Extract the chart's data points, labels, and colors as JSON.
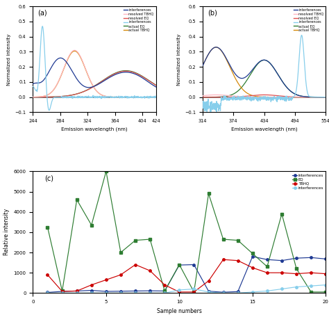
{
  "panel_a": {
    "title": "(a)",
    "xlabel": "Emission wavelength (nm)",
    "ylabel": "Normalized intensity",
    "xlim": [
      244,
      424
    ],
    "ylim": [
      -0.1,
      0.6
    ],
    "xticks": [
      244,
      284,
      324,
      364,
      404,
      424
    ],
    "yticks": [
      -0.1,
      0.0,
      0.1,
      0.2,
      0.3,
      0.4,
      0.5,
      0.6
    ],
    "legend": [
      "interferences",
      "resolved TBHQ",
      "resolved EQ",
      "interferences",
      "actual EQ",
      "actual TBHQ"
    ],
    "colors": [
      "#1F3A93",
      "#FFB6C1",
      "#E05050",
      "#87CEEB",
      "#2E7D32",
      "#D4890A"
    ]
  },
  "panel_b": {
    "title": "(b)",
    "xlabel": "Emission wavelength (nm)",
    "ylabel": "Normalized intensity",
    "xlim": [
      314,
      554
    ],
    "ylim": [
      -0.1,
      0.6
    ],
    "xticks": [
      314,
      374,
      434,
      494,
      554
    ],
    "yticks": [
      -0.1,
      0.0,
      0.1,
      0.2,
      0.3,
      0.4,
      0.5,
      0.6
    ],
    "legend": [
      "interferences",
      "resolved TBHQ",
      "resolved EQ",
      "interferences",
      "actual EQ",
      "actual TBHQ"
    ],
    "colors": [
      "#1F3A93",
      "#FFB6C1",
      "#E05050",
      "#87CEEB",
      "#2E7D32",
      "#D4890A"
    ]
  },
  "panel_c": {
    "title": "(c)",
    "xlabel": "Sample numbers",
    "ylabel": "Relative intensity",
    "xlim": [
      0,
      20
    ],
    "ylim": [
      0,
      6000
    ],
    "xticks": [
      0,
      5,
      10,
      15,
      20
    ],
    "yticks": [
      0,
      1000,
      2000,
      3000,
      4000,
      5000,
      6000
    ],
    "legend": [
      "interferences",
      "EQ",
      "TBHQ",
      "interferences"
    ],
    "colors": [
      "#1F3A93",
      "#2E7D32",
      "#CC0000",
      "#87CEEB"
    ],
    "x": [
      1,
      2,
      3,
      4,
      5,
      6,
      7,
      8,
      9,
      10,
      11,
      12,
      13,
      14,
      15,
      16,
      17,
      18,
      19,
      20
    ],
    "interferences_blue": [
      30,
      80,
      100,
      130,
      80,
      90,
      100,
      110,
      100,
      1380,
      1400,
      90,
      40,
      70,
      1800,
      1650,
      1600,
      1720,
      1750,
      1680
    ],
    "EQ": [
      3250,
      100,
      4600,
      3350,
      6000,
      2000,
      2600,
      2650,
      100,
      1400,
      50,
      4900,
      2650,
      2600,
      1950,
      1300,
      3900,
      1200,
      50,
      50
    ],
    "TBHQ": [
      900,
      80,
      100,
      400,
      650,
      900,
      1400,
      1100,
      400,
      50,
      50,
      600,
      1650,
      1600,
      1250,
      1000,
      1000,
      950,
      1000,
      950
    ],
    "interferences_cyan": [
      0,
      0,
      0,
      0,
      0,
      0,
      0,
      0,
      0,
      150,
      200,
      50,
      0,
      0,
      50,
      100,
      200,
      300,
      350,
      400
    ]
  }
}
